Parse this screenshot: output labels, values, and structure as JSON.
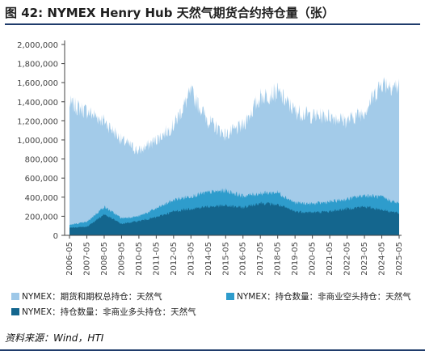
{
  "title": "图 42:  NYMEX Henry Hub 天然气期货合约持仓量（张）",
  "source": "资料来源：Wind，HTI",
  "colors": {
    "total": "#9ec8e8",
    "short": "#2e9ccc",
    "long": "#14668e",
    "axis": "#444444",
    "text": "#444444"
  },
  "chart_data": {
    "type": "area",
    "title": "",
    "xlabel": "",
    "ylabel": "",
    "ylim": [
      0,
      2000000
    ],
    "yticks": [
      "0",
      "200,000",
      "400,000",
      "600,000",
      "800,000",
      "1,000,000",
      "1,200,000",
      "1,400,000",
      "1,600,000",
      "1,800,000",
      "2,000,000"
    ],
    "xticks": [
      "2006-05",
      "2007-05",
      "2008-05",
      "2009-05",
      "2010-05",
      "2011-05",
      "2012-05",
      "2013-05",
      "2014-05",
      "2015-05",
      "2016-05",
      "2017-05",
      "2018-05",
      "2019-05",
      "2020-05",
      "2021-05",
      "2022-05",
      "2023-05",
      "2024-05",
      "2025-05"
    ],
    "grid": false,
    "legend_position": "bottom",
    "x": [
      "2006-05",
      "2007-05",
      "2008-05",
      "2009-05",
      "2010-05",
      "2011-05",
      "2012-05",
      "2013-05",
      "2014-05",
      "2015-05",
      "2016-05",
      "2017-05",
      "2018-05",
      "2019-05",
      "2020-05",
      "2021-05",
      "2022-05",
      "2023-05",
      "2024-05",
      "2025-05"
    ],
    "series": [
      {
        "name": "NYMEX：期货和期权总持仓：天然气",
        "key": "total",
        "values": [
          1380000,
          1300000,
          1200000,
          1000000,
          880000,
          1000000,
          1150000,
          1500000,
          1200000,
          1050000,
          1150000,
          1450000,
          1500000,
          1300000,
          1250000,
          1250000,
          1200000,
          1300000,
          1600000,
          1550000
        ]
      },
      {
        "name": "NYMEX：持仓数量：非商业空头持仓：天然气",
        "key": "short",
        "values": [
          110000,
          140000,
          300000,
          180000,
          200000,
          280000,
          370000,
          410000,
          450000,
          470000,
          410000,
          440000,
          450000,
          340000,
          330000,
          350000,
          380000,
          420000,
          400000,
          330000
        ]
      },
      {
        "name": "NYMEX：持仓数量：非商业多头持仓：天然气",
        "key": "long",
        "values": [
          80000,
          90000,
          220000,
          120000,
          150000,
          190000,
          250000,
          280000,
          300000,
          310000,
          290000,
          340000,
          320000,
          250000,
          240000,
          250000,
          280000,
          300000,
          270000,
          230000
        ]
      }
    ]
  }
}
